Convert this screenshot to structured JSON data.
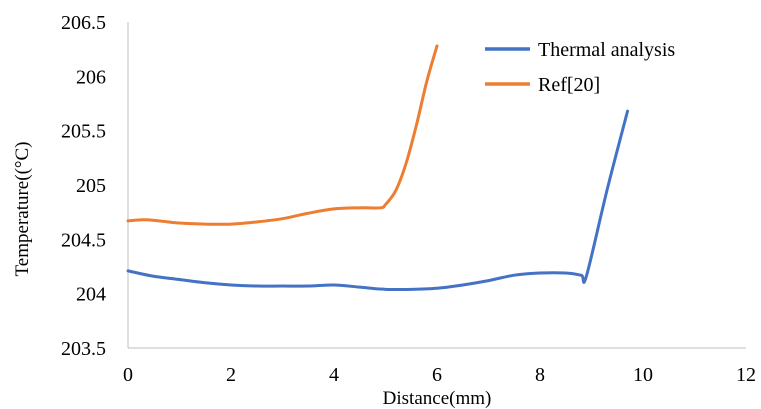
{
  "chart_data": {
    "type": "line",
    "title": "",
    "xlabel": "Distance(mm)",
    "ylabel": "Temperature((°C)",
    "xlim": [
      0,
      12
    ],
    "ylim": [
      203.5,
      206.5
    ],
    "xticks": [
      0,
      2,
      4,
      6,
      8,
      10,
      12
    ],
    "yticks": [
      203.5,
      204,
      204.5,
      205,
      205.5,
      206,
      206.5
    ],
    "xtick_labels": [
      "0",
      "2",
      "4",
      "6",
      "8",
      "10",
      "12"
    ],
    "ytick_labels": [
      "203.5",
      "204",
      "204.5",
      "205",
      "205.5",
      "206",
      "206.5"
    ],
    "grid": false,
    "legend_position": "top-right",
    "series": [
      {
        "name": "Thermal analysis",
        "color": "#4472c4",
        "x": [
          0,
          0.5,
          1,
          1.5,
          2,
          2.5,
          3,
          3.5,
          4,
          4.5,
          5,
          5.5,
          6,
          6.5,
          7,
          7.5,
          8,
          8.5,
          8.8,
          8.9,
          9.3,
          9.7
        ],
        "y": [
          204.21,
          204.16,
          204.13,
          204.1,
          204.08,
          204.07,
          204.07,
          204.07,
          204.08,
          204.06,
          204.04,
          204.04,
          204.05,
          204.08,
          204.12,
          204.17,
          204.19,
          204.19,
          204.17,
          204.16,
          204.95,
          205.68
        ]
      },
      {
        "name": "Ref[20]",
        "color": "#ed7d31",
        "x": [
          0,
          0.3,
          0.6,
          1,
          1.5,
          2,
          2.5,
          3,
          3.5,
          4,
          4.5,
          4.9,
          5,
          5.2,
          5.4,
          5.6,
          5.8,
          6
        ],
        "y": [
          204.67,
          204.68,
          204.67,
          204.65,
          204.64,
          204.64,
          204.66,
          204.69,
          204.74,
          204.78,
          204.79,
          204.79,
          204.82,
          204.95,
          205.2,
          205.55,
          205.95,
          206.28
        ]
      }
    ]
  }
}
